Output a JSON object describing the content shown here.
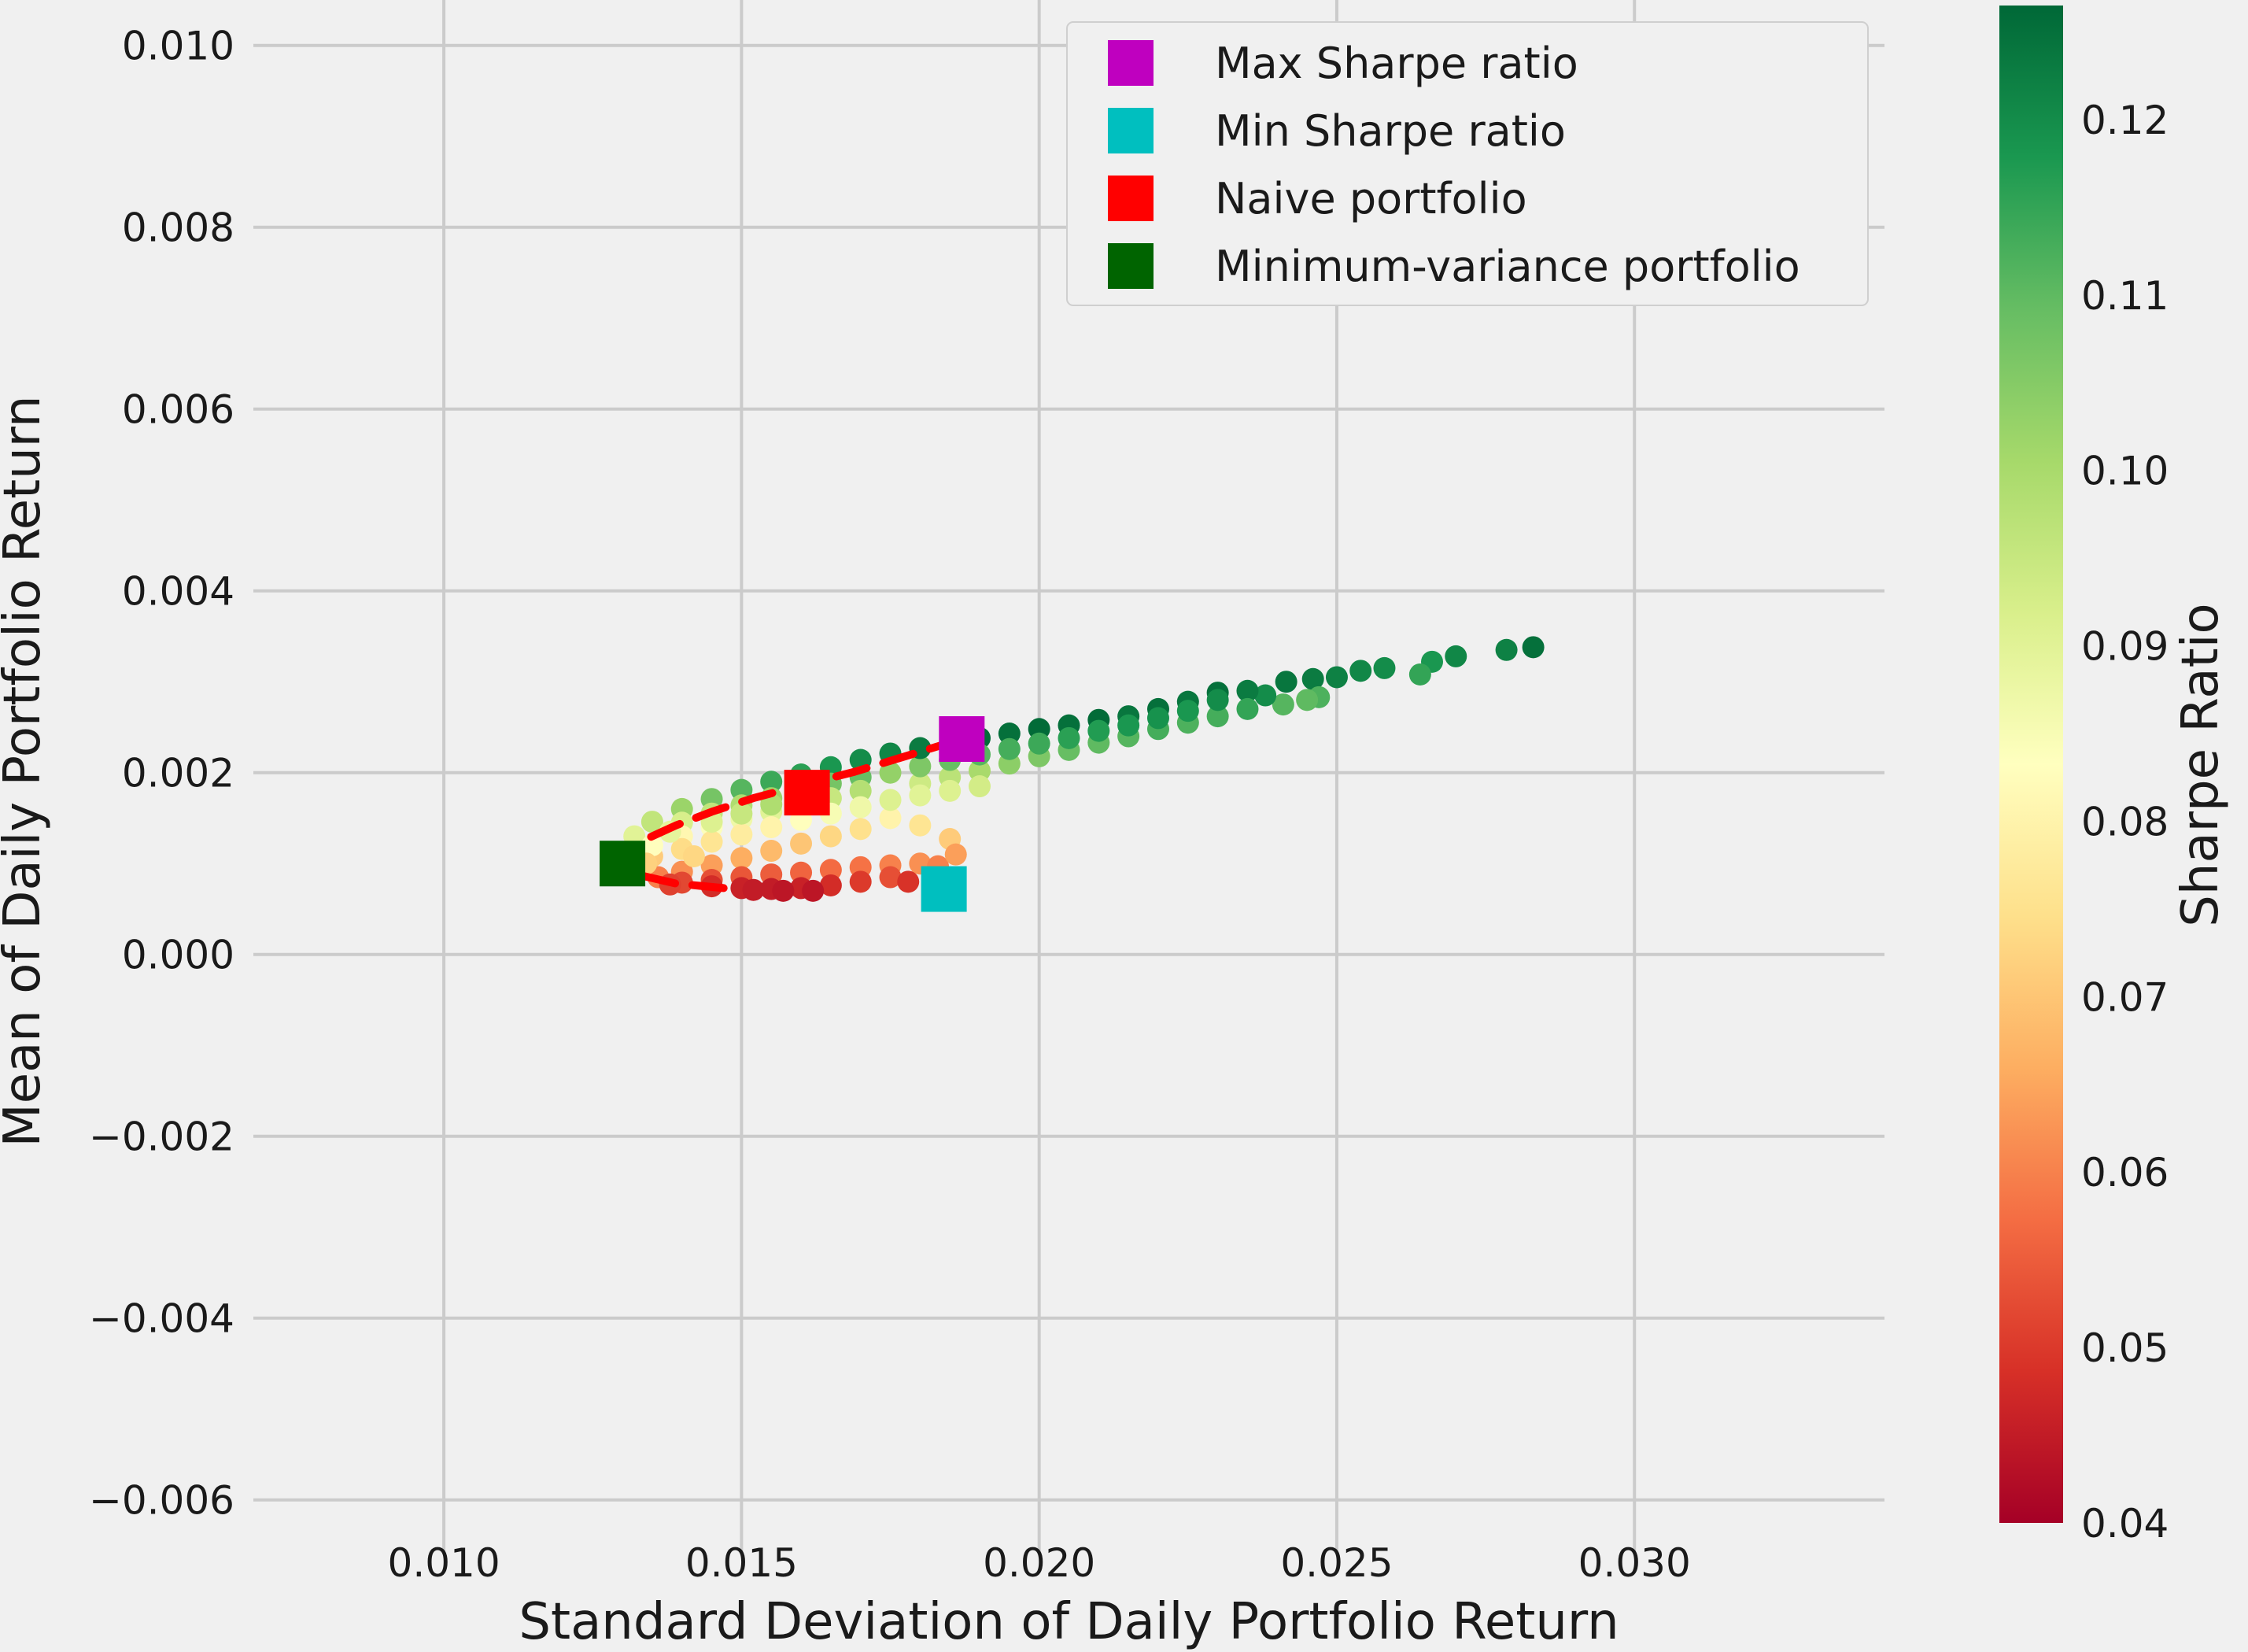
{
  "chart_data": {
    "type": "scatter",
    "title": "",
    "xlabel": "Standard Deviation of Daily Portfolio Return",
    "ylabel": "Mean of Daily Portfolio Return",
    "xlim": [
      0.0068,
      0.0342
    ],
    "ylim": [
      -0.0066,
      0.0105
    ],
    "xticks": [
      "0.010",
      "0.015",
      "0.020",
      "0.025",
      "0.030"
    ],
    "xtick_values": [
      0.01,
      0.015,
      0.02,
      0.025,
      0.03
    ],
    "yticks": [
      "0.010",
      "0.008",
      "0.006",
      "0.004",
      "0.002",
      "0.000",
      "−0.002",
      "−0.004",
      "−0.006"
    ],
    "ytick_values": [
      0.01,
      0.008,
      0.006,
      0.004,
      0.002,
      0.0,
      -0.002,
      -0.004,
      -0.006
    ],
    "grid": true,
    "colorbar": {
      "label": "Sharpe Ratio",
      "colormap": "RdYlGn",
      "range": [
        0.04,
        0.1265
      ],
      "ticks": [
        "0.12",
        "0.11",
        "0.10",
        "0.09",
        "0.08",
        "0.07",
        "0.06",
        "0.05",
        "0.04"
      ],
      "tick_values": [
        0.12,
        0.11,
        0.1,
        0.09,
        0.08,
        0.07,
        0.06,
        0.05,
        0.04
      ]
    },
    "legend": {
      "position": "upper-right",
      "entries": [
        {
          "label": "Max Sharpe ratio",
          "color": "#bf00bf"
        },
        {
          "label": "Min Sharpe ratio",
          "color": "#00bfbf"
        },
        {
          "label": "Naive portfolio",
          "color": "#ff0000"
        },
        {
          "label": "Minimum-variance portfolio",
          "color": "#006400"
        }
      ]
    },
    "special_points": [
      {
        "name": "Max Sharpe ratio",
        "x": 0.0187,
        "y": 0.00237,
        "color": "#bf00bf"
      },
      {
        "name": "Min Sharpe ratio",
        "x": 0.0184,
        "y": 0.00072,
        "color": "#00bfbf"
      },
      {
        "name": "Naive portfolio",
        "x": 0.0161,
        "y": 0.00178,
        "color": "#ff0000"
      },
      {
        "name": "Minimum-variance portfolio",
        "x": 0.013,
        "y": 0.001,
        "color": "#006400"
      }
    ],
    "frontier_line": {
      "style": "dashed",
      "color": "#ff0000",
      "x": [
        0.0147,
        0.0139,
        0.0133,
        0.013,
        0.0131,
        0.0134,
        0.0139,
        0.0145,
        0.0152,
        0.016,
        0.0169,
        0.0178,
        0.0187
      ],
      "y": [
        0.00073,
        0.00078,
        0.00087,
        0.001,
        0.00113,
        0.00127,
        0.00142,
        0.00157,
        0.00172,
        0.00186,
        0.00201,
        0.00219,
        0.00237
      ]
    },
    "scatter_points": [
      [
        0.0283,
        0.00338,
        0.125
      ],
      [
        0.02785,
        0.00335,
        0.122
      ],
      [
        0.027,
        0.00328,
        0.121
      ],
      [
        0.0266,
        0.00322,
        0.118
      ],
      [
        0.0264,
        0.00308,
        0.115
      ],
      [
        0.0258,
        0.00315,
        0.12
      ],
      [
        0.0254,
        0.00312,
        0.121
      ],
      [
        0.025,
        0.00305,
        0.122
      ],
      [
        0.0246,
        0.00303,
        0.123
      ],
      [
        0.02415,
        0.003,
        0.124
      ],
      [
        0.0247,
        0.00283,
        0.112
      ],
      [
        0.0245,
        0.0028,
        0.11
      ],
      [
        0.0241,
        0.00275,
        0.111
      ],
      [
        0.0238,
        0.00285,
        0.12
      ],
      [
        0.0235,
        0.0029,
        0.123
      ],
      [
        0.023,
        0.00288,
        0.125
      ],
      [
        0.0225,
        0.00278,
        0.124
      ],
      [
        0.022,
        0.0027,
        0.125
      ],
      [
        0.0215,
        0.00262,
        0.124
      ],
      [
        0.021,
        0.00258,
        0.126
      ],
      [
        0.0205,
        0.00252,
        0.125
      ],
      [
        0.02,
        0.00248,
        0.126
      ],
      [
        0.0195,
        0.00243,
        0.125
      ],
      [
        0.019,
        0.00238,
        0.126
      ],
      [
        0.0235,
        0.0027,
        0.115
      ],
      [
        0.023,
        0.00262,
        0.113
      ],
      [
        0.0225,
        0.00255,
        0.112
      ],
      [
        0.022,
        0.00248,
        0.113
      ],
      [
        0.0215,
        0.0024,
        0.111
      ],
      [
        0.021,
        0.00233,
        0.11
      ],
      [
        0.0205,
        0.00225,
        0.109
      ],
      [
        0.02,
        0.00218,
        0.106
      ],
      [
        0.0195,
        0.0021,
        0.104
      ],
      [
        0.019,
        0.00202,
        0.1
      ],
      [
        0.0185,
        0.00195,
        0.097
      ],
      [
        0.018,
        0.00188,
        0.094
      ],
      [
        0.023,
        0.0028,
        0.12
      ],
      [
        0.0225,
        0.00268,
        0.118
      ],
      [
        0.022,
        0.0026,
        0.119
      ],
      [
        0.0215,
        0.00252,
        0.118
      ],
      [
        0.021,
        0.00246,
        0.117
      ],
      [
        0.0205,
        0.00238,
        0.116
      ],
      [
        0.02,
        0.00232,
        0.114
      ],
      [
        0.0195,
        0.00226,
        0.113
      ],
      [
        0.019,
        0.0022,
        0.111
      ],
      [
        0.0185,
        0.00214,
        0.109
      ],
      [
        0.018,
        0.00207,
        0.106
      ],
      [
        0.0175,
        0.002,
        0.103
      ],
      [
        0.0185,
        0.00232,
        0.124
      ],
      [
        0.018,
        0.00227,
        0.123
      ],
      [
        0.0175,
        0.00221,
        0.121
      ],
      [
        0.017,
        0.00214,
        0.12
      ],
      [
        0.0165,
        0.00206,
        0.118
      ],
      [
        0.016,
        0.00198,
        0.116
      ],
      [
        0.0155,
        0.0019,
        0.114
      ],
      [
        0.015,
        0.00181,
        0.111
      ],
      [
        0.0145,
        0.00171,
        0.107
      ],
      [
        0.014,
        0.0016,
        0.102
      ],
      [
        0.0135,
        0.00146,
        0.096
      ],
      [
        0.0132,
        0.0013,
        0.09
      ],
      [
        0.017,
        0.00195,
        0.109
      ],
      [
        0.0165,
        0.00188,
        0.107
      ],
      [
        0.016,
        0.0018,
        0.105
      ],
      [
        0.0155,
        0.00172,
        0.102
      ],
      [
        0.015,
        0.00164,
        0.099
      ],
      [
        0.0145,
        0.00155,
        0.096
      ],
      [
        0.014,
        0.00145,
        0.092
      ],
      [
        0.017,
        0.0018,
        0.098
      ],
      [
        0.0165,
        0.00172,
        0.095
      ],
      [
        0.016,
        0.00165,
        0.093
      ],
      [
        0.0155,
        0.00157,
        0.09
      ],
      [
        0.015,
        0.00149,
        0.087
      ],
      [
        0.0145,
        0.0014,
        0.084
      ],
      [
        0.014,
        0.0013,
        0.081
      ],
      [
        0.017,
        0.00162,
        0.087
      ],
      [
        0.0165,
        0.00155,
        0.085
      ],
      [
        0.016,
        0.00148,
        0.083
      ],
      [
        0.0155,
        0.0014,
        0.08
      ],
      [
        0.015,
        0.00132,
        0.078
      ],
      [
        0.0145,
        0.00124,
        0.076
      ],
      [
        0.014,
        0.00116,
        0.074
      ],
      [
        0.0135,
        0.00108,
        0.071
      ],
      [
        0.0175,
        0.0015,
        0.08
      ],
      [
        0.018,
        0.00142,
        0.076
      ],
      [
        0.0185,
        0.00127,
        0.071
      ],
      [
        0.017,
        0.00138,
        0.075
      ],
      [
        0.0165,
        0.0013,
        0.073
      ],
      [
        0.016,
        0.00122,
        0.07
      ],
      [
        0.0155,
        0.00114,
        0.068
      ],
      [
        0.015,
        0.00106,
        0.066
      ],
      [
        0.0145,
        0.00098,
        0.064
      ],
      [
        0.014,
        0.00091,
        0.062
      ],
      [
        0.0136,
        0.00085,
        0.06
      ],
      [
        0.018,
        0.001,
        0.062
      ],
      [
        0.0175,
        0.00098,
        0.06
      ],
      [
        0.017,
        0.00096,
        0.058
      ],
      [
        0.0165,
        0.00093,
        0.057
      ],
      [
        0.016,
        0.0009,
        0.056
      ],
      [
        0.0155,
        0.00088,
        0.055
      ],
      [
        0.015,
        0.00085,
        0.054
      ],
      [
        0.0145,
        0.00082,
        0.053
      ],
      [
        0.014,
        0.00079,
        0.052
      ],
      [
        0.0175,
        0.00085,
        0.053
      ],
      [
        0.017,
        0.0008,
        0.05
      ],
      [
        0.0165,
        0.00076,
        0.048
      ],
      [
        0.016,
        0.00073,
        0.046
      ],
      [
        0.0155,
        0.00072,
        0.045
      ],
      [
        0.015,
        0.00073,
        0.046
      ],
      [
        0.0145,
        0.00075,
        0.048
      ],
      [
        0.0138,
        0.00077,
        0.051
      ],
      [
        0.0162,
        0.0007,
        0.044
      ],
      [
        0.0157,
        0.0007,
        0.044
      ],
      [
        0.0152,
        0.00071,
        0.045
      ],
      [
        0.0178,
        0.0008,
        0.049
      ],
      [
        0.0183,
        0.00097,
        0.06
      ],
      [
        0.0186,
        0.0011,
        0.064
      ],
      [
        0.016,
        0.00172,
        0.101
      ],
      [
        0.0155,
        0.00165,
        0.099
      ],
      [
        0.015,
        0.00155,
        0.095
      ],
      [
        0.0145,
        0.00146,
        0.091
      ],
      [
        0.0175,
        0.0017,
        0.091
      ],
      [
        0.018,
        0.00175,
        0.09
      ],
      [
        0.0185,
        0.0018,
        0.091
      ],
      [
        0.019,
        0.00185,
        0.093
      ],
      [
        0.0135,
        0.0012,
        0.083
      ],
      [
        0.0138,
        0.00135,
        0.089
      ],
      [
        0.0134,
        0.001,
        0.072
      ],
      [
        0.0142,
        0.00108,
        0.073
      ]
    ]
  }
}
